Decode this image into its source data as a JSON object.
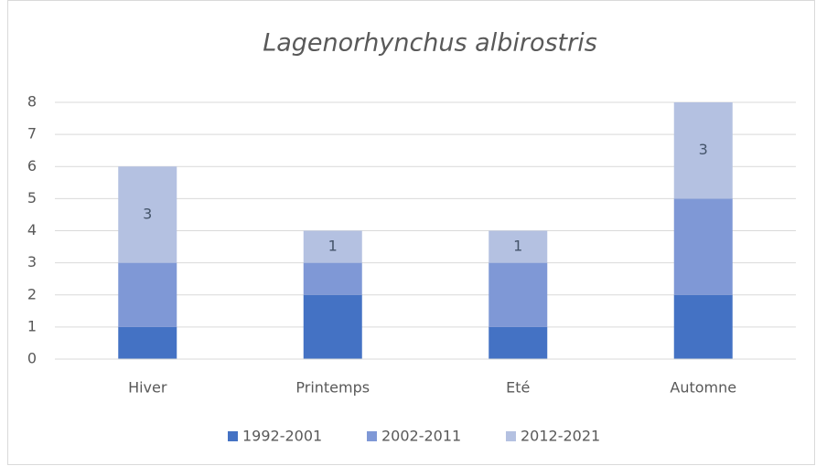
{
  "chart_data": {
    "type": "stacked_bar",
    "title": "Lagenorhynchus albirostris",
    "categories": [
      "Hiver",
      "Printemps",
      "Eté",
      "Automne"
    ],
    "series": [
      {
        "name": "1992-2001",
        "color": "#4472c4",
        "values": [
          1,
          2,
          1,
          2
        ]
      },
      {
        "name": "2002-2011",
        "color": "#7f98d6",
        "values": [
          2,
          1,
          2,
          3
        ]
      },
      {
        "name": "2012-2021",
        "color": "#b4c1e1",
        "values": [
          3,
          1,
          1,
          3
        ],
        "data_labels": true
      }
    ],
    "ylim": [
      0,
      8
    ],
    "yticks": [
      0,
      1,
      2,
      3,
      4,
      5,
      6,
      7,
      8
    ],
    "grid": true,
    "legend": "bottom"
  }
}
